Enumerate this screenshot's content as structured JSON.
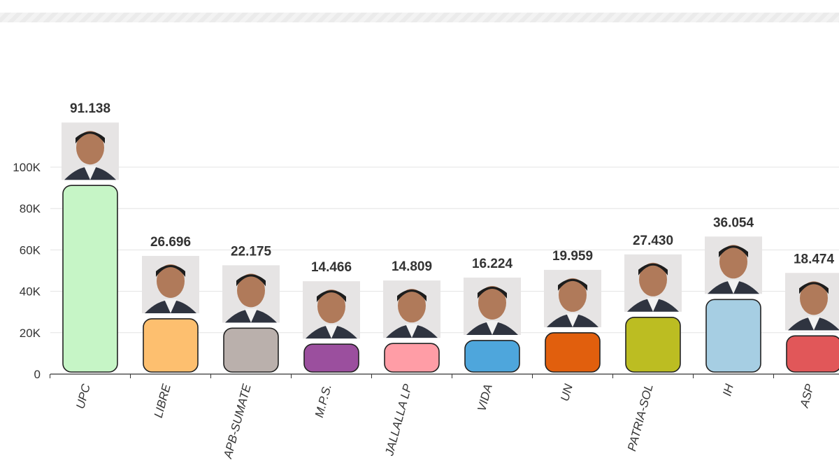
{
  "chart_data": {
    "type": "bar",
    "title": "",
    "xlabel": "",
    "ylabel": "",
    "ylim": [
      0,
      120000
    ],
    "yticks": [
      0,
      20000,
      40000,
      60000,
      80000,
      100000
    ],
    "ytick_labels": [
      "0",
      "20K",
      "40K",
      "60K",
      "80K",
      "100K"
    ],
    "grid": true,
    "legend": "none",
    "categories": [
      "UPC",
      "LIBRE",
      "APB-SUMATE",
      "M.P.S.",
      "JALLALLA LP",
      "VIDA",
      "UN",
      "PATRIA-SOL",
      "IH",
      "ASP"
    ],
    "values": [
      91138,
      26696,
      22175,
      14466,
      14809,
      16224,
      19959,
      27430,
      36054,
      18474
    ],
    "value_labels": [
      "91.138",
      "26.696",
      "22.175",
      "14.466",
      "14.809",
      "16.224",
      "19.959",
      "27.430",
      "36.054",
      "18.474"
    ],
    "colors": [
      "#c6f5c6",
      "#fdbf6f",
      "#bab0ac",
      "#9b4f9e",
      "#ff9da6",
      "#4ea6dc",
      "#e15f0d",
      "#bcbd22",
      "#a6cee3",
      "#e15759"
    ],
    "marker_icons": [
      "candidate-photo",
      "candidate-photo",
      "candidate-photo",
      "candidate-photo",
      "candidate-photo",
      "candidate-photo",
      "candidate-photo",
      "candidate-photo",
      "candidate-photo",
      "candidate-photo"
    ]
  }
}
